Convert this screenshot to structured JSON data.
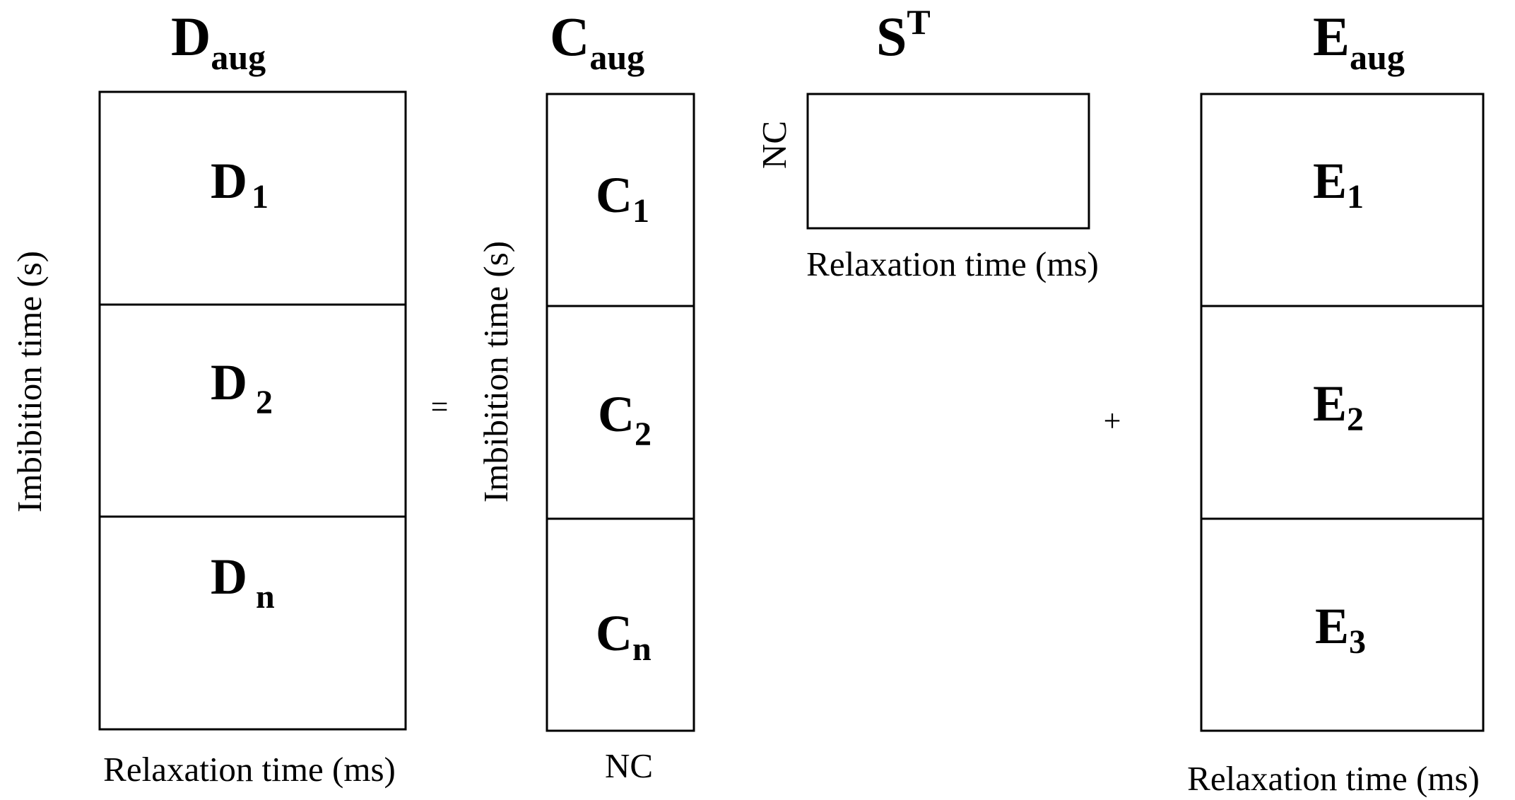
{
  "matrices": [
    {
      "name": "D",
      "subscript": "aug",
      "row_axis": "Imbibition  time (s)",
      "column_axis": "Relaxation time (ms)",
      "blocks": [
        {
          "name": "D",
          "subscript": "1"
        },
        {
          "name": "D",
          "subscript": "2"
        },
        {
          "name": "D",
          "subscript": "n"
        }
      ]
    },
    {
      "name": "C",
      "subscript": "aug",
      "row_axis": "Imbibition  time (s)",
      "column_axis": "NC",
      "blocks": [
        {
          "name": "C",
          "subscript": "1"
        },
        {
          "name": "C",
          "subscript": "2"
        },
        {
          "name": "C",
          "subscript": "n"
        }
      ]
    },
    {
      "name": "S",
      "superscript": "T",
      "row_axis": "NC",
      "column_axis": "Relaxation time (ms)"
    },
    {
      "name": "E",
      "subscript": "aug",
      "column_axis": "Relaxation time (ms)",
      "blocks": [
        {
          "name": "E",
          "subscript": "1"
        },
        {
          "name": "E",
          "subscript": "2"
        },
        {
          "name": "E",
          "subscript": "3"
        }
      ]
    }
  ],
  "operators": [
    "=",
    "+"
  ]
}
